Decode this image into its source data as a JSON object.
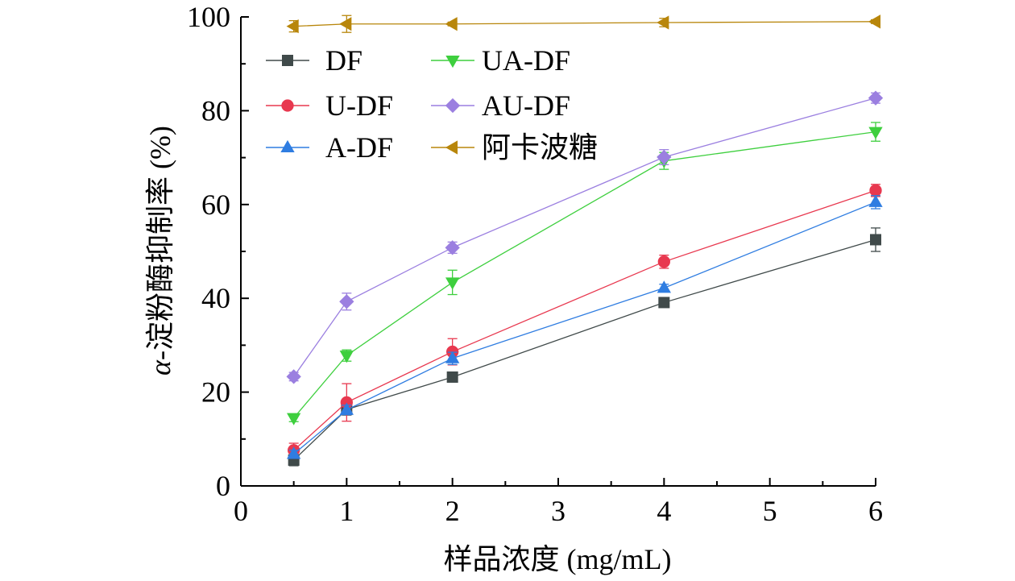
{
  "chart_data": {
    "type": "line",
    "xlabel": "样品浓度 (mg/mL)",
    "ylabel_prefix": "α",
    "ylabel_rest": "-淀粉酶抑制率 (%)",
    "xlim": [
      0,
      6
    ],
    "ylim": [
      0,
      100
    ],
    "xticks": [
      0,
      1,
      2,
      3,
      4,
      5,
      6
    ],
    "yticks": [
      0,
      20,
      40,
      60,
      80,
      100
    ],
    "x": [
      0.5,
      1,
      2,
      4,
      6
    ],
    "grid": false,
    "legend_position": "top-left",
    "series": [
      {
        "name": "DF",
        "marker": "square",
        "color": "#404a4a",
        "values": [
          5.5,
          16.3,
          23.2,
          39.1,
          52.5
        ],
        "errors": [
          1.2,
          1.2,
          0.8,
          0.7,
          2.5
        ]
      },
      {
        "name": "U-DF",
        "marker": "circle",
        "color": "#e8384f",
        "values": [
          7.6,
          17.8,
          28.6,
          47.8,
          63.0
        ],
        "errors": [
          1.5,
          4.0,
          2.8,
          1.4,
          1.3
        ]
      },
      {
        "name": "A-DF",
        "marker": "triangle-up",
        "color": "#2f7de1",
        "values": [
          6.8,
          16.2,
          27.2,
          42.2,
          60.5
        ],
        "errors": [
          0.8,
          1.0,
          1.3,
          0.8,
          1.4
        ]
      },
      {
        "name": "UA-DF",
        "marker": "triangle-down",
        "color": "#3ecf3e",
        "values": [
          14.5,
          27.8,
          43.4,
          69.3,
          75.5
        ],
        "errors": [
          0.8,
          1.2,
          2.6,
          1.8,
          2.0
        ]
      },
      {
        "name": "AU-DF",
        "marker": "diamond",
        "color": "#9b7fe0",
        "values": [
          23.3,
          39.3,
          50.8,
          70.1,
          82.7
        ],
        "errors": [
          0.9,
          1.8,
          1.2,
          1.6,
          1.1
        ]
      },
      {
        "name": "阿卡波糖",
        "marker": "triangle-left",
        "color": "#b8860b",
        "values": [
          98.0,
          98.5,
          98.5,
          98.8,
          99.0
        ],
        "errors": [
          1.2,
          1.8,
          0.4,
          0.9,
          0.4
        ]
      }
    ]
  }
}
